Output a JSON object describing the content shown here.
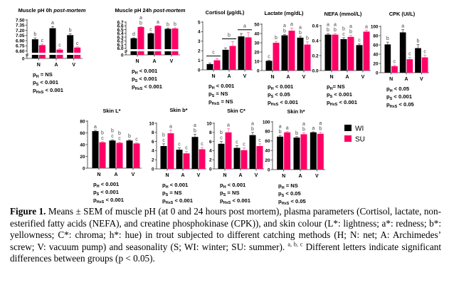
{
  "colors": {
    "WI": "#000000",
    "SU": "#ff0066",
    "axis": "#333333",
    "letters": "#444444"
  },
  "legend": {
    "items": [
      {
        "label": "WI",
        "color": "#000000"
      },
      {
        "label": "SU",
        "color": "#ff0066"
      }
    ],
    "placement": "right of bottom row"
  },
  "caption": {
    "label": "Figure 1.",
    "text_before_sup": "Means ± SEM of muscle pH (at 0 and 24 hours post mortem), plasma parameters (Cortisol, lactate, non-esterified fatty acids (NEFA), and creatine phosphokinase (CPK)),  and skin colour (L*: lightness; a*: redness; b*: yellowness; C*: chroma; h*: hue) in trout subjected to different catching methods (H; N: net; A: Archimedes’ screw; V: vacuum pump) and seasonality (S; WI: winter; SU: summer).",
    "sup": "a, b, c",
    "text_after_sup": "Different letters indicate significant differences between groups (p < 0.05)."
  },
  "chart_data": [
    {
      "type": "bar",
      "title": "Muscle pH 0h ",
      "title_italic": "post-mortem",
      "categories": [
        "N",
        "A",
        "V"
      ],
      "series": [
        {
          "name": "WI",
          "values": [
            6.94,
            7.26,
            7.06
          ],
          "errors": [
            0.04,
            0.05,
            0.04
          ]
        },
        {
          "name": "SU",
          "values": [
            6.77,
            6.64,
            6.7
          ],
          "errors": [
            0.03,
            0.02,
            0.02
          ]
        }
      ],
      "letters": {
        "WI": [
          "b",
          "a",
          "b"
        ],
        "SU": [
          "c",
          "c",
          "c"
        ]
      },
      "ylim": [
        6.55,
        7.5
      ],
      "axis_break": true,
      "yticks": [
        "7.50",
        "7.35",
        "7.20",
        "7.05",
        "6.90",
        "6.75",
        "6.60"
      ],
      "ytick_values": [
        7.5,
        7.35,
        7.2,
        7.05,
        6.9,
        6.75,
        6.6
      ],
      "pvalues": [
        {
          "sub": "H",
          "text": " = NS"
        },
        {
          "sub": "S",
          "text": " < 0.001"
        },
        {
          "sub": "HxS",
          "text": " < 0.001"
        }
      ]
    },
    {
      "type": "bar",
      "title": "Muscle pH 24h ",
      "title_italic": "post-mortem",
      "categories": [
        "N",
        "A",
        "V"
      ],
      "series": [
        {
          "name": "WI",
          "values": [
            6.27,
            6.4,
            6.52
          ],
          "errors": [
            0.01,
            0.01,
            0.02
          ]
        },
        {
          "name": "SU",
          "values": [
            6.57,
            6.6,
            6.53
          ],
          "errors": [
            0.01,
            0.01,
            0.02
          ]
        }
      ],
      "letters": {
        "WI": [
          "d",
          "c",
          "b"
        ],
        "SU": [
          "a\nb",
          "a",
          "b"
        ]
      },
      "ylim": [
        5.98,
        6.7
      ],
      "axis_break": true,
      "yticks": [
        "6.7",
        "6.6",
        "6.5",
        "6.4",
        "6.3",
        "6.2",
        "6.1",
        "6.0"
      ],
      "ytick_values": [
        6.7,
        6.6,
        6.5,
        6.4,
        6.3,
        6.2,
        6.1,
        6.0
      ],
      "pvalues": [
        {
          "sub": "H",
          "text": " < 0.001"
        },
        {
          "sub": "S",
          "text": " < 0.001"
        },
        {
          "sub": "HxS",
          "text": " < 0.001"
        }
      ]
    },
    {
      "type": "bar",
      "title": "Cortisol (µg/dL)",
      "title_italic": "",
      "categories": [
        "N",
        "A",
        "V"
      ],
      "series": [
        {
          "name": "WI",
          "values": [
            0.6,
            2.1,
            3.5
          ],
          "errors": [
            0.1,
            0.2,
            0.3
          ]
        },
        {
          "name": "SU",
          "values": [
            1.0,
            2.5,
            3.4
          ],
          "errors": [
            0.15,
            0.45,
            0.5
          ]
        }
      ],
      "group_letters": [
        "c",
        "b",
        "a"
      ],
      "ylim": [
        0,
        5
      ],
      "yticks": [
        "0",
        "1",
        "2",
        "3",
        "4",
        "5"
      ],
      "ytick_values": [
        0,
        1,
        2,
        3,
        4,
        5
      ],
      "pvalues": [
        {
          "sub": "H",
          "text": " < 0.001"
        },
        {
          "sub": "S",
          "text": " = NS"
        },
        {
          "sub": "HxS",
          "text": " = NS"
        }
      ]
    },
    {
      "type": "bar",
      "title": "Lactate (mg/dL)",
      "title_italic": "",
      "categories": [
        "N",
        "A",
        "V"
      ],
      "series": [
        {
          "name": "WI",
          "values": [
            10.5,
            38,
            35.5
          ],
          "errors": [
            0.5,
            1.0,
            1.5
          ]
        },
        {
          "name": "SU",
          "values": [
            30,
            43,
            28
          ],
          "errors": [
            1.5,
            3.0,
            3.0
          ]
        }
      ],
      "letters": {
        "WI": [
          "c",
          "a\nb",
          "a\nb"
        ],
        "SU": [
          "b",
          "a",
          "b"
        ]
      },
      "ylim": [
        0,
        50
      ],
      "yticks": [
        "0",
        "10",
        "20",
        "30",
        "40",
        "50"
      ],
      "ytick_values": [
        0,
        10,
        20,
        30,
        40,
        50
      ],
      "pvalues": [
        {
          "sub": "H",
          "text": " < 0.001"
        },
        {
          "sub": "S",
          "text": " < 0.05"
        },
        {
          "sub": "HxS",
          "text": " < 0.001"
        }
      ]
    },
    {
      "type": "bar",
      "title": "NEFA (mmol/L)",
      "title_italic": "",
      "categories": [
        "N",
        "A",
        "V"
      ],
      "series": [
        {
          "name": "WI",
          "values": [
            0.48,
            0.42,
            0.34
          ],
          "errors": [
            0.015,
            0.02,
            0.015
          ]
        },
        {
          "name": "SU",
          "values": [
            0.48,
            0.45,
            0.52
          ],
          "errors": [
            0.015,
            0.02,
            0.02
          ]
        }
      ],
      "letters": {
        "WI": [
          "a\nb",
          "b\nc",
          "c"
        ],
        "SU": [
          "a\nb",
          "a\nb",
          "a"
        ]
      },
      "ylim": [
        0,
        0.6
      ],
      "yticks": [
        "0.0",
        "0.2",
        "0.4",
        "0.6"
      ],
      "ytick_values": [
        0,
        0.2,
        0.4,
        0.6
      ],
      "pvalues": [
        {
          "sub": "H",
          "text": "= NS"
        },
        {
          "sub": "S",
          "text": " < 0.001"
        },
        {
          "sub": "HxS",
          "text": " < 0.001"
        }
      ]
    },
    {
      "type": "bar",
      "title": "CPK (UI/L)",
      "title_italic": "",
      "categories": [
        "N",
        "A",
        "V"
      ],
      "series": [
        {
          "name": "WI",
          "values": [
            61,
            87,
            53
          ],
          "errors": [
            5,
            6,
            8
          ]
        },
        {
          "name": "SU",
          "values": [
            14,
            29,
            33
          ],
          "errors": [
            2,
            4,
            5
          ]
        }
      ],
      "letters": {
        "WI": [
          "b",
          "a",
          "b"
        ],
        "SU": [
          "c",
          "c",
          "c"
        ]
      },
      "ylim": [
        0,
        100
      ],
      "yticks": [
        "0",
        "20",
        "40",
        "60",
        "80",
        "100"
      ],
      "ytick_values": [
        0,
        20,
        40,
        60,
        80,
        100
      ],
      "pvalues": [
        {
          "sub": "H",
          "text": " < 0.05"
        },
        {
          "sub": "S",
          "text": " < 0.001"
        },
        {
          "sub": "HxS",
          "text": " < 0.05"
        }
      ]
    },
    {
      "type": "bar",
      "title": "Skin L*",
      "title_italic": "",
      "categories": [
        "N",
        "A",
        "V"
      ],
      "series": [
        {
          "name": "WI",
          "values": [
            63,
            47,
            47
          ],
          "errors": [
            1.5,
            1.2,
            1.2
          ]
        },
        {
          "name": "SU",
          "values": [
            44,
            43,
            42
          ],
          "errors": [
            1.0,
            1.0,
            1.0
          ]
        }
      ],
      "letters": {
        "WI": [
          "a",
          "b\nc",
          "b"
        ],
        "SU": [
          "b\nc",
          "b\nc",
          "c"
        ]
      },
      "ylim": [
        0,
        80
      ],
      "yticks": [
        "0",
        "20",
        "40",
        "60",
        "80"
      ],
      "ytick_values": [
        0,
        20,
        40,
        60,
        80
      ],
      "pvalues": [
        {
          "sub": "H",
          "text": " < 0.001"
        },
        {
          "sub": "S",
          "text": " < 0.001"
        },
        {
          "sub": "HxS",
          "text": " < 0.001"
        }
      ]
    },
    {
      "type": "bar",
      "title": "Skin b*",
      "title_italic": "",
      "categories": [
        "N",
        "A",
        "V"
      ],
      "series": [
        {
          "name": "WI",
          "values": [
            5.0,
            4.2,
            7.0
          ],
          "errors": [
            0.5,
            0.4,
            0.6
          ]
        },
        {
          "name": "SU",
          "values": [
            7.8,
            3.4,
            4.3
          ],
          "errors": [
            0.7,
            0.4,
            0.4
          ]
        }
      ],
      "letters": {
        "WI": [
          "b\nc",
          "c",
          "a\nb"
        ],
        "SU": [
          "a",
          "c",
          "c"
        ]
      },
      "ylim": [
        0,
        10
      ],
      "yticks": [
        "0",
        "2",
        "4",
        "6",
        "8",
        "10"
      ],
      "ytick_values": [
        0,
        2,
        4,
        6,
        8,
        10
      ],
      "pvalues": [
        {
          "sub": "H",
          "text": " < 0.001"
        },
        {
          "sub": "S",
          "text": " = NS"
        },
        {
          "sub": "HxS",
          "text": " < 0.001"
        }
      ]
    },
    {
      "type": "bar",
      "title": "Skin C*",
      "title_italic": "",
      "categories": [
        "N",
        "A",
        "V"
      ],
      "series": [
        {
          "name": "WI",
          "values": [
            5.5,
            4.6,
            7.4
          ],
          "errors": [
            0.5,
            0.5,
            0.6
          ]
        },
        {
          "name": "SU",
          "values": [
            8.0,
            4.1,
            5.0
          ],
          "errors": [
            0.8,
            0.5,
            0.5
          ]
        }
      ],
      "letters": {
        "WI": [
          "b\nc",
          "c",
          "a\nb"
        ],
        "SU": [
          "a",
          "c",
          "c"
        ]
      },
      "ylim": [
        0,
        10
      ],
      "yticks": [
        "0",
        "2",
        "4",
        "6",
        "8",
        "10"
      ],
      "ytick_values": [
        0,
        2,
        4,
        6,
        8,
        10
      ],
      "pvalues": [
        {
          "sub": "H",
          "text": " < 0.001"
        },
        {
          "sub": "S",
          "text": " = NS"
        },
        {
          "sub": "HxS",
          "text": " < 0.001"
        }
      ]
    },
    {
      "type": "bar",
      "title": "Skin h*",
      "title_italic": "",
      "categories": [
        "N",
        "A",
        "V"
      ],
      "series": [
        {
          "name": "WI",
          "values": [
            69,
            67,
            78
          ],
          "errors": [
            2.5,
            2.0,
            1.0
          ]
        },
        {
          "name": "SU",
          "values": [
            78,
            74,
            75
          ],
          "errors": [
            1.5,
            3.0,
            3.0
          ]
        }
      ],
      "letters": {
        "WI": [
          "a\nb",
          "b",
          "a"
        ],
        "SU": [
          "a",
          "a\nb",
          "a\nb"
        ]
      },
      "ylim": [
        0,
        100
      ],
      "yticks": [
        "0",
        "20",
        "40",
        "60",
        "80",
        "100"
      ],
      "ytick_values": [
        0,
        20,
        40,
        60,
        80,
        100
      ],
      "pvalues": [
        {
          "sub": "H",
          "text": " = NS"
        },
        {
          "sub": "S",
          "text": " < 0.05"
        },
        {
          "sub": "HxS",
          "text": " < 0.05"
        }
      ]
    }
  ]
}
